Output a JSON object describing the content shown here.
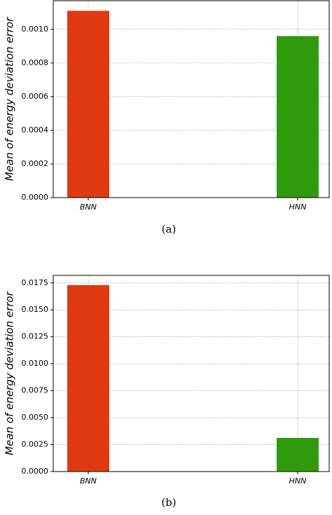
{
  "chart_data": [
    {
      "type": "bar",
      "ylabel": "Mean of energy deviation error",
      "caption": "(a)",
      "categories": [
        "BNN",
        "HNN"
      ],
      "values": [
        0.00111,
        0.00096
      ],
      "colors": [
        "#e03a12",
        "#2f9a0c"
      ],
      "ylim": [
        0,
        0.00117
      ],
      "yticks": [
        {
          "value": 0,
          "label": "0.0000"
        },
        {
          "value": 0.0002,
          "label": "0.0002"
        },
        {
          "value": 0.0004,
          "label": "0.0004"
        },
        {
          "value": 0.0006,
          "label": "0.0006"
        },
        {
          "value": 0.0008,
          "label": "0.0008"
        },
        {
          "value": 0.001,
          "label": "0.0010"
        }
      ],
      "grid": true
    },
    {
      "type": "bar",
      "ylabel": "Mean of energy deviation error",
      "caption": "(b)",
      "categories": [
        "BNN",
        "HNN"
      ],
      "values": [
        0.0173,
        0.00312
      ],
      "colors": [
        "#e03a12",
        "#2f9a0c"
      ],
      "ylim": [
        0,
        0.0182
      ],
      "yticks": [
        {
          "value": 0,
          "label": "0.0000"
        },
        {
          "value": 0.0025,
          "label": "0.0025"
        },
        {
          "value": 0.005,
          "label": "0.0050"
        },
        {
          "value": 0.0075,
          "label": "0.0075"
        },
        {
          "value": 0.01,
          "label": "0.0100"
        },
        {
          "value": 0.0125,
          "label": "0.0125"
        },
        {
          "value": 0.015,
          "label": "0.0150"
        },
        {
          "value": 0.0175,
          "label": "0.0175"
        }
      ],
      "grid": true
    }
  ]
}
